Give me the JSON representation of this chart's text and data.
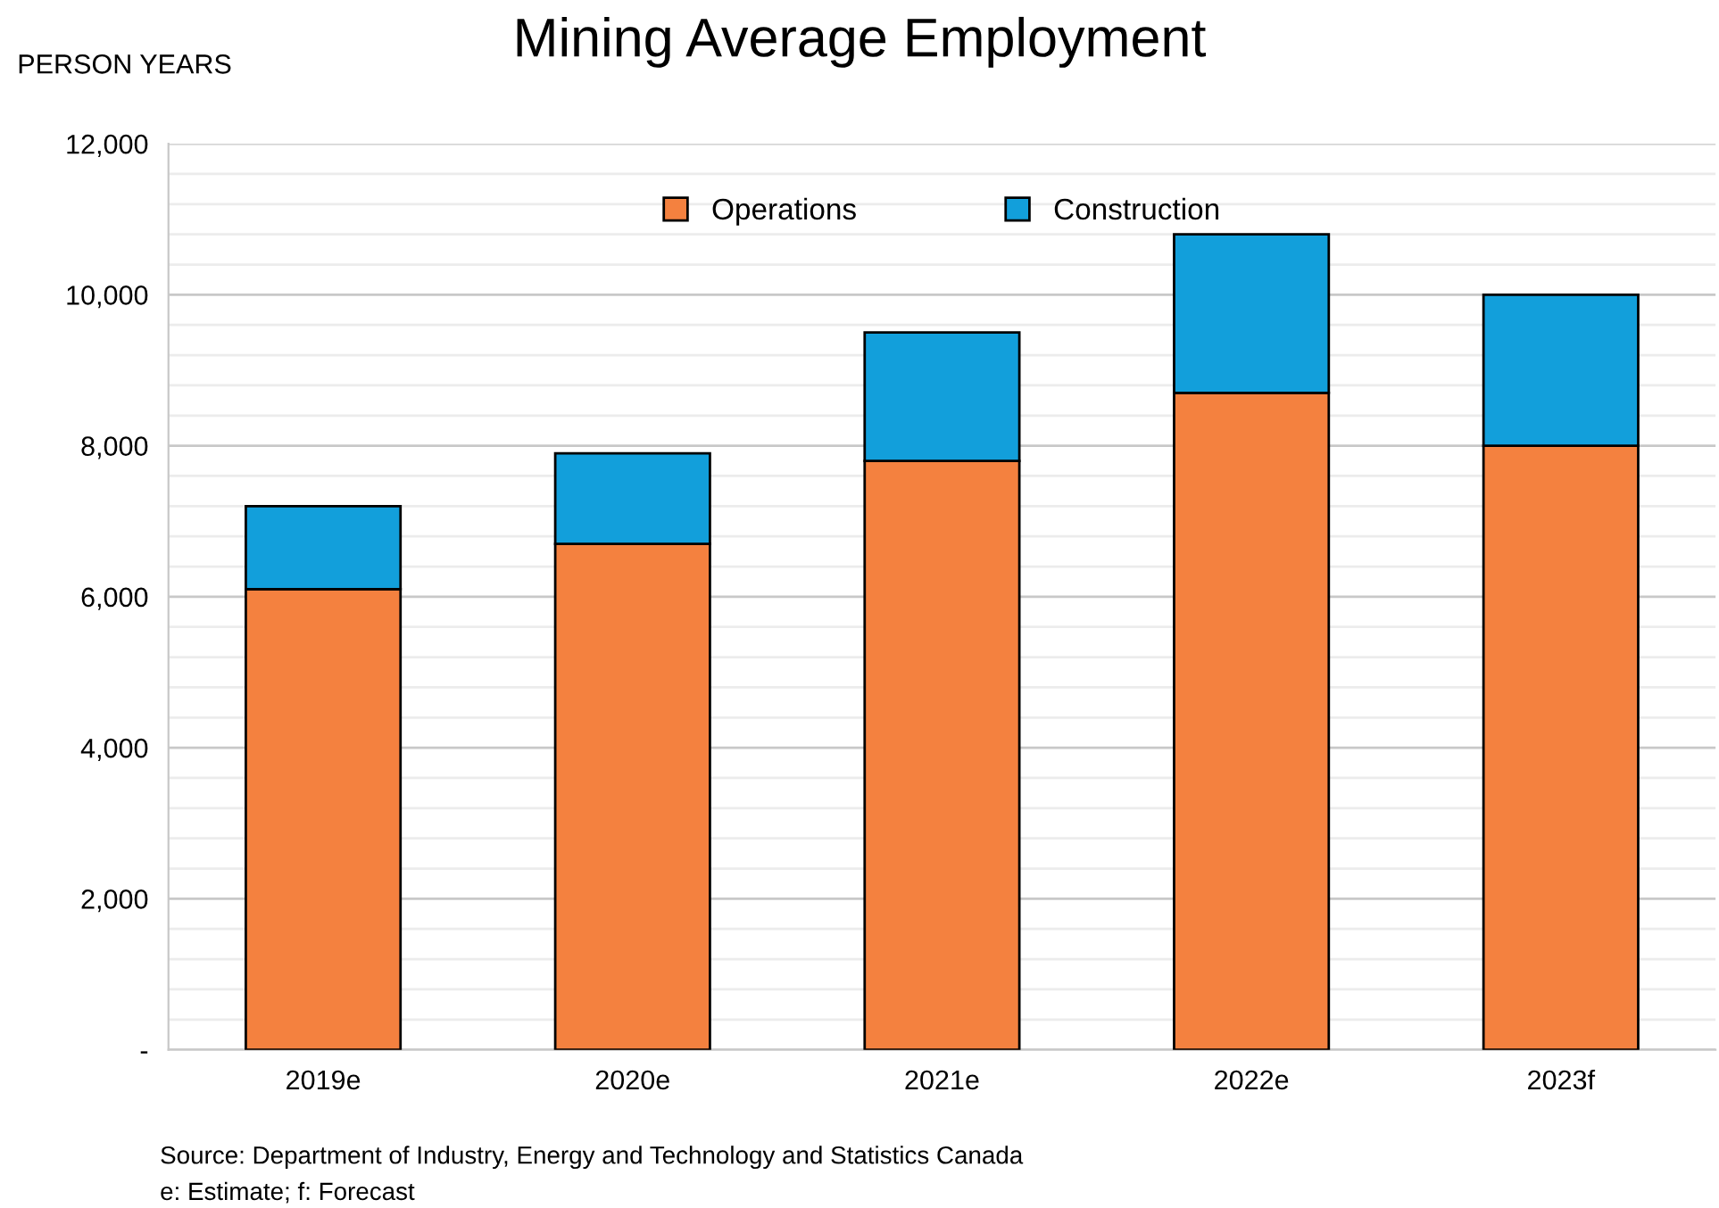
{
  "chart_data": {
    "type": "bar",
    "stacked": true,
    "title": "Mining Average Employment",
    "ylabel": "PERSON YEARS",
    "categories": [
      "2019e",
      "2020e",
      "2021e",
      "2022e",
      "2023f"
    ],
    "series": [
      {
        "name": "Operations",
        "color": "#f4813f",
        "values": [
          6100,
          6700,
          7800,
          8700,
          8000
        ]
      },
      {
        "name": "Construction",
        "color": "#129fdb",
        "values": [
          1100,
          1200,
          1700,
          2100,
          2000
        ]
      }
    ],
    "ylim": [
      0,
      12000
    ],
    "yticks": [
      {
        "value": 0,
        "label": "-"
      },
      {
        "value": 400,
        "label": null
      },
      {
        "value": 800,
        "label": null
      },
      {
        "value": 1200,
        "label": null
      },
      {
        "value": 1600,
        "label": null
      },
      "2,000",
      {
        "value": 2400,
        "label": null
      },
      {
        "value": 2800,
        "label": null
      },
      {
        "value": 3200,
        "label": null
      },
      {
        "value": 3600,
        "label": null
      },
      {
        "value": 4000,
        "label": "4,000"
      },
      {
        "value": 4400,
        "label": null
      },
      {
        "value": 4800,
        "label": null
      },
      {
        "value": 5200,
        "label": null
      },
      {
        "value": 5600,
        "label": null
      },
      {
        "value": 6000,
        "label": "6,000"
      },
      {
        "value": 6400,
        "label": null
      },
      {
        "value": 6800,
        "label": null
      },
      {
        "value": 7200,
        "label": null
      },
      {
        "value": 7600,
        "label": null
      },
      {
        "value": 8000,
        "label": "8,000"
      },
      {
        "value": 8400,
        "label": null
      },
      {
        "value": 8800,
        "label": null
      },
      {
        "value": 9200,
        "label": null
      },
      {
        "value": 9600,
        "label": null
      },
      {
        "value": 10000,
        "label": "10,000"
      },
      {
        "value": 10400,
        "label": null
      },
      {
        "value": 10800,
        "label": null
      },
      {
        "value": 11200,
        "label": null
      },
      {
        "value": 11600,
        "label": null
      },
      {
        "value": 12000,
        "label": "12,000"
      }
    ],
    "grid": "y",
    "legend": "top",
    "annotations": [
      "Source: Department of Industry, Energy and Technology and Statistics Canada",
      "e: Estimate; f: Forecast"
    ]
  }
}
